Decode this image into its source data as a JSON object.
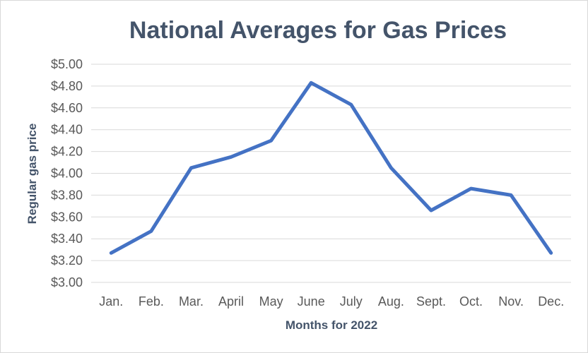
{
  "chart_data": {
    "type": "line",
    "title": "National Averages for Gas Prices",
    "xlabel": "Months for 2022",
    "ylabel": "Regular gas price",
    "categories": [
      "Jan.",
      "Feb.",
      "Mar.",
      "April",
      "May",
      "June",
      "July",
      "Aug.",
      "Sept.",
      "Oct.",
      "Nov.",
      "Dec."
    ],
    "series": [
      {
        "values": [
          3.27,
          3.47,
          4.05,
          4.15,
          4.3,
          4.83,
          4.63,
          4.05,
          3.66,
          3.86,
          3.8,
          3.27
        ],
        "color": "#4472c4"
      }
    ],
    "ylim": [
      3.0,
      5.0
    ],
    "yticks": [
      "$3.00",
      "$3.20",
      "$3.40",
      "$3.60",
      "$3.80",
      "$4.00",
      "$4.20",
      "$4.40",
      "$4.60",
      "$4.80",
      "$5.00"
    ],
    "grid": true,
    "legend": "none"
  }
}
